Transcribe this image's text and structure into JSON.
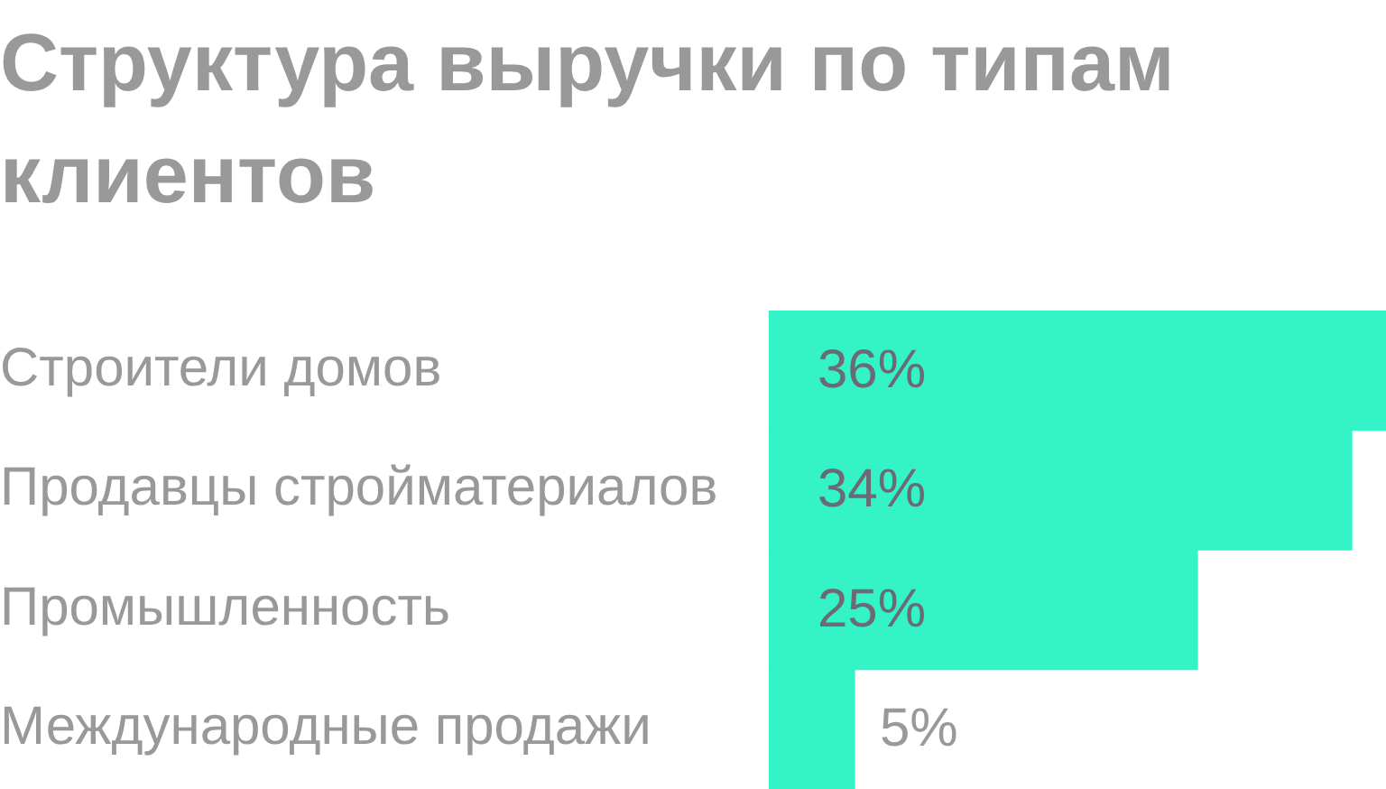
{
  "chart_data": {
    "type": "bar",
    "orientation": "horizontal",
    "title": "Структура выручки по типам клиентов",
    "categories": [
      "Строители домов",
      "Продавцы стройматериалов",
      "Промышленность",
      "Международные продажи"
    ],
    "values": [
      36,
      34,
      25,
      5
    ],
    "color": "#33f3c7",
    "value_labels": [
      "36%",
      "34%",
      "25%",
      "5%"
    ],
    "tick_labels": "y"
  }
}
